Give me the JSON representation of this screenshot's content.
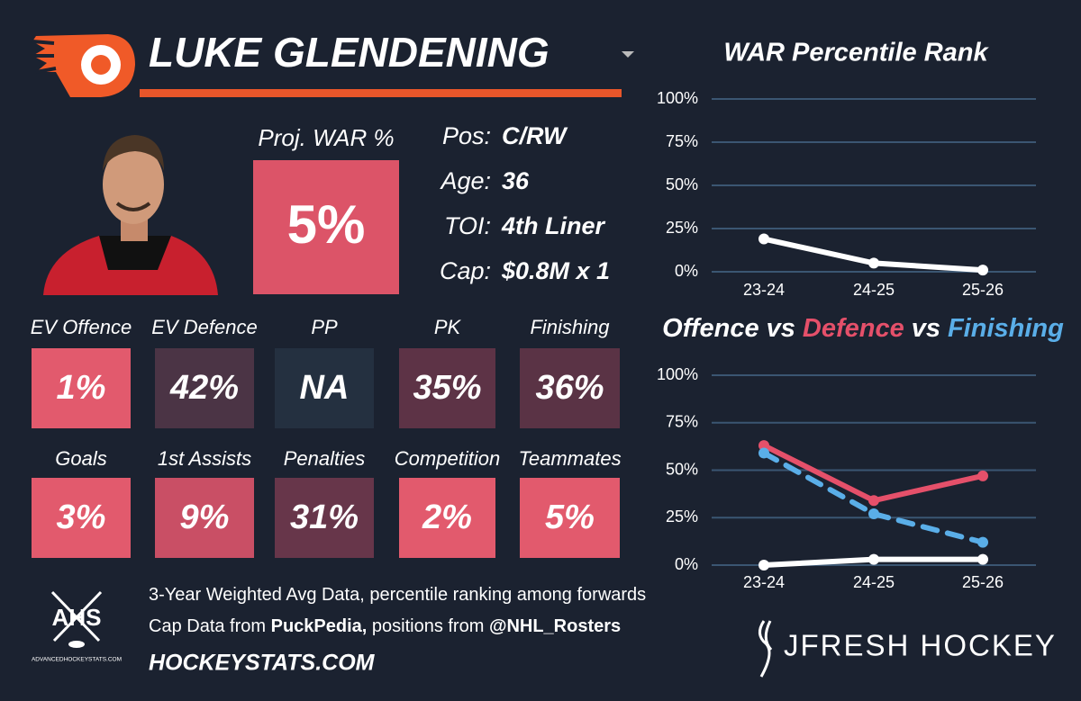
{
  "header": {
    "name": "LUKE GLENDENING"
  },
  "projection": {
    "label": "Proj. WAR %",
    "value": "5%",
    "color": "#dc5468"
  },
  "info": [
    {
      "label": "Pos:",
      "value": "C/RW"
    },
    {
      "label": "Age:",
      "value": "36"
    },
    {
      "label": "TOI:",
      "value": "4th Liner"
    },
    {
      "label": "Cap:",
      "value": "$0.8M x 1"
    }
  ],
  "tiles": [
    {
      "label": "EV Offence",
      "value": "1%",
      "color": "#e25a6d"
    },
    {
      "label": "EV Defence",
      "value": "42%",
      "color": "#4b3445"
    },
    {
      "label": "PP",
      "value": "NA",
      "color": "#243040"
    },
    {
      "label": "PK",
      "value": "35%",
      "color": "#5d3346"
    },
    {
      "label": "Finishing",
      "value": "36%",
      "color": "#5a3345"
    },
    {
      "label": "Goals",
      "value": "3%",
      "color": "#e25a6d"
    },
    {
      "label": "1st Assists",
      "value": "9%",
      "color": "#c94f65"
    },
    {
      "label": "Penalties",
      "value": "31%",
      "color": "#67364a"
    },
    {
      "label": "Competition",
      "value": "2%",
      "color": "#e25a6d"
    },
    {
      "label": "Teammates",
      "value": "5%",
      "color": "#e25a6d"
    }
  ],
  "chart_data": [
    {
      "type": "line",
      "title": "WAR Percentile Rank",
      "categories": [
        "23-24",
        "24-25",
        "25-26"
      ],
      "values": [
        19,
        5,
        1
      ],
      "color": "#ffffff",
      "ylim": [
        0,
        100
      ],
      "yticks": [
        {
          "value": 0,
          "label": "0%"
        },
        {
          "value": 25,
          "label": "25%"
        },
        {
          "value": 50,
          "label": "50%"
        },
        {
          "value": 75,
          "label": "75%"
        },
        {
          "value": 100,
          "label": "100%"
        }
      ],
      "grid": true
    },
    {
      "type": "line",
      "title_separator": "vs",
      "categories": [
        "23-24",
        "24-25",
        "25-26"
      ],
      "series": [
        {
          "name": "Offence",
          "color": "#ffffff",
          "values": [
            0,
            3,
            3
          ]
        },
        {
          "name": "Defence",
          "color": "#e5506a",
          "values": [
            63,
            34,
            47
          ]
        },
        {
          "name": "Finishing",
          "color": "#5aaee8",
          "values": [
            59,
            27,
            12
          ],
          "dashed": true
        }
      ],
      "ylim": [
        0,
        100
      ],
      "yticks": [
        {
          "value": 0,
          "label": "0%"
        },
        {
          "value": 25,
          "label": "25%"
        },
        {
          "value": 50,
          "label": "50%"
        },
        {
          "value": 75,
          "label": "75%"
        },
        {
          "value": 100,
          "label": "100%"
        }
      ],
      "grid": true
    }
  ],
  "footer": {
    "notes": [
      [
        {
          "text": "3-Year Weighted Avg Data, percentile ranking among forwards"
        }
      ],
      [
        {
          "text": "Cap Data from "
        },
        {
          "text": "PuckPedia,",
          "bold": true
        },
        {
          "text": " positions from "
        },
        {
          "text": "@NHL_Rosters",
          "bold": true
        }
      ]
    ],
    "site": "HOCKEYSTATS.COM",
    "logo_title": "AHS",
    "logo_url": "ADVANCEDHOCKEYSTATS.COM",
    "brand": "JFRESH HOCKEY"
  }
}
